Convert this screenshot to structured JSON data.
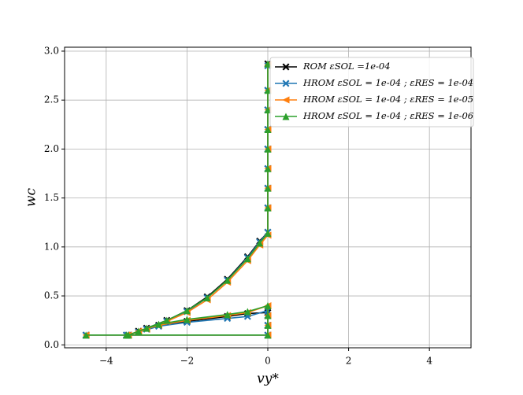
{
  "chart_data": {
    "type": "line",
    "xlabel": "vy*",
    "ylabel": "wc",
    "xlim": [
      -5.03,
      5.03
    ],
    "ylim": [
      -0.03,
      3.04
    ],
    "xticks": [
      {
        "value": -4,
        "label": "−4"
      },
      {
        "value": -2,
        "label": "−2"
      },
      0,
      2,
      4
    ],
    "yticks": [
      {
        "value": 0,
        "label": "0.0"
      },
      {
        "value": 0.5,
        "label": "0.5"
      },
      {
        "value": 1,
        "label": "1.0"
      },
      {
        "value": 1.5,
        "label": "1.5"
      },
      {
        "value": 2,
        "label": "2.0"
      },
      {
        "value": 2.5,
        "label": "2.5"
      },
      {
        "value": 3,
        "label": "3.0"
      }
    ],
    "grid": true,
    "legend": "upper right",
    "series": [
      {
        "name": "ROM εSOL =1e-04",
        "color": "#000000",
        "marker": "x",
        "x": [
          -4.5,
          -3.5,
          0,
          0,
          0,
          0,
          -0.5,
          -1,
          -2,
          -2.7,
          -3.2,
          -3.45,
          -3.0,
          -2.5,
          -2.0,
          -1.5,
          -1.0,
          -0.5,
          -0.2,
          0,
          0,
          0,
          0,
          0,
          0,
          0,
          0,
          0
        ],
        "values": [
          0.1,
          0.1,
          0.1,
          0.2,
          0.3,
          0.33,
          0.32,
          0.29,
          0.24,
          0.2,
          0.14,
          0.1,
          0.17,
          0.25,
          0.35,
          0.49,
          0.67,
          0.9,
          1.06,
          1.15,
          1.4,
          1.6,
          1.8,
          2.0,
          2.2,
          2.4,
          2.6,
          2.87
        ]
      },
      {
        "name": "HROM εSOL = 1e-04 ; εRES = 1e-04",
        "color": "#1f77b4",
        "marker": "x",
        "x": [
          -4.5,
          -3.5,
          0,
          0,
          0,
          0,
          -0.5,
          -1,
          -2,
          -2.7,
          -3.2,
          -3.45,
          -3.0,
          -2.5,
          -2.0,
          -1.5,
          -1.0,
          -0.5,
          -0.2,
          0,
          0,
          0,
          0,
          0,
          0,
          0,
          0,
          0
        ],
        "values": [
          0.1,
          0.1,
          0.1,
          0.2,
          0.3,
          0.35,
          0.29,
          0.27,
          0.23,
          0.19,
          0.13,
          0.1,
          0.16,
          0.24,
          0.34,
          0.48,
          0.66,
          0.89,
          1.05,
          1.15,
          1.4,
          1.6,
          1.8,
          2.0,
          2.2,
          2.4,
          2.6,
          2.85
        ]
      },
      {
        "name": "HROM εSOL = 1e-04 ; εRES = 1e-05",
        "color": "#ff7f0e",
        "marker": "<",
        "x": [
          -4.5,
          -3.5,
          0,
          0,
          0,
          0,
          -0.5,
          -1,
          -2,
          -2.7,
          -3.2,
          -3.45,
          -3.0,
          -2.5,
          -2.0,
          -1.5,
          -1.0,
          -0.5,
          -0.2,
          0,
          0,
          0,
          0,
          0,
          0,
          0,
          0,
          0
        ],
        "values": [
          0.1,
          0.1,
          0.1,
          0.2,
          0.3,
          0.4,
          0.33,
          0.3,
          0.25,
          0.2,
          0.14,
          0.1,
          0.16,
          0.24,
          0.33,
          0.46,
          0.64,
          0.86,
          1.02,
          1.12,
          1.4,
          1.6,
          1.8,
          2.0,
          2.2,
          2.4,
          2.6,
          2.86
        ]
      },
      {
        "name": "HROM εSOL = 1e-04 ; εRES = 1e-06",
        "color": "#2ca02c",
        "marker": "^",
        "x": [
          -4.5,
          -3.5,
          0,
          0,
          0,
          0,
          -0.5,
          -1,
          -2,
          -2.7,
          -3.2,
          -3.45,
          -3.0,
          -2.5,
          -2.0,
          -1.5,
          -1.0,
          -0.5,
          -0.2,
          0,
          0,
          0,
          0,
          0,
          0,
          0,
          0,
          0
        ],
        "values": [
          0.1,
          0.1,
          0.1,
          0.2,
          0.3,
          0.4,
          0.34,
          0.31,
          0.26,
          0.21,
          0.14,
          0.1,
          0.17,
          0.25,
          0.35,
          0.48,
          0.66,
          0.88,
          1.04,
          1.14,
          1.4,
          1.6,
          1.8,
          2.0,
          2.2,
          2.4,
          2.6,
          2.87
        ]
      }
    ]
  }
}
